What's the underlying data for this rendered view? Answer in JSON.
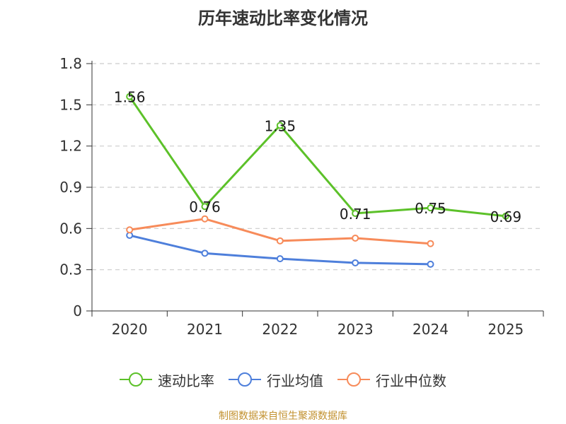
{
  "chart_data": {
    "type": "line",
    "title": "历年速动比率变化情况",
    "categories": [
      "2020",
      "2021",
      "2022",
      "2023",
      "2024",
      "2025"
    ],
    "y_ticks": [
      "0",
      "0.3",
      "0.6",
      "0.9",
      "1.2",
      "1.5",
      "1.8"
    ],
    "ylim": [
      0,
      1.8
    ],
    "grid": true,
    "legend_position": "bottom",
    "xlabel": "",
    "ylabel": "",
    "series": [
      {
        "name": "速动比率",
        "color": "#5cc129",
        "values": [
          1.56,
          0.76,
          1.35,
          0.71,
          0.75,
          0.69
        ],
        "labels": [
          "1.56",
          "0.76",
          "1.35",
          "0.71",
          "0.75",
          "0.69"
        ]
      },
      {
        "name": "行业均值",
        "color": "#4e7fdb",
        "values": [
          0.55,
          0.42,
          0.38,
          0.35,
          0.34,
          null
        ]
      },
      {
        "name": "行业中位数",
        "color": "#f78b5a",
        "values": [
          0.59,
          0.67,
          0.51,
          0.53,
          0.49,
          null
        ]
      }
    ]
  },
  "legend": {
    "items": [
      "速动比率",
      "行业均值",
      "行业中位数"
    ]
  },
  "source": "制图数据来自恒生聚源数据库"
}
